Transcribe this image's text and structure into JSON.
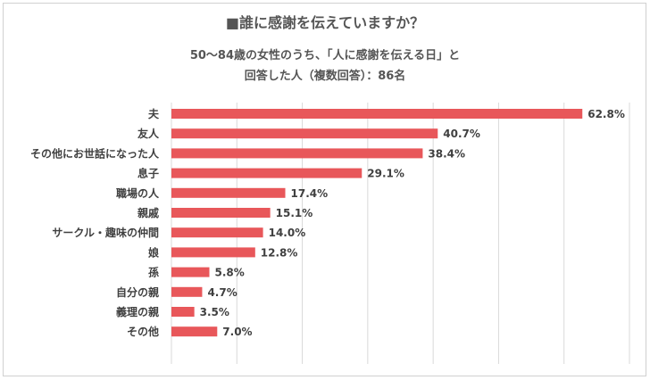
{
  "chart_data": {
    "type": "bar",
    "orientation": "horizontal",
    "title": "■誰に感謝を伝えていますか？",
    "subtitle_line1": "50～84歳の女性のうち、「人に感謝を伝える日」と",
    "subtitle_line2": "回答した人（複数回答）：86名",
    "categories": [
      "夫",
      "友人",
      "その他にお世話になった人",
      "息子",
      "職場の人",
      "親戚",
      "サークル・趣味の仲間",
      "娘",
      "孫",
      "自分の親",
      "義理の親",
      "その他"
    ],
    "values": [
      62.8,
      40.7,
      38.4,
      29.1,
      17.4,
      15.1,
      14.0,
      12.8,
      5.8,
      4.7,
      3.5,
      7.0
    ],
    "value_labels": [
      "62.8%",
      "40.7%",
      "38.4%",
      "29.1%",
      "17.4%",
      "15.1%",
      "14.0%",
      "12.8%",
      "5.8%",
      "4.7%",
      "3.5%",
      "7.0%"
    ],
    "xlim": [
      0,
      70
    ],
    "gridlines_at": [
      0,
      10,
      20,
      30,
      40,
      50,
      60,
      70
    ],
    "grid": true,
    "legend": "none",
    "bar_color": "#e8575a",
    "grid_color": "#d9d9d9"
  }
}
